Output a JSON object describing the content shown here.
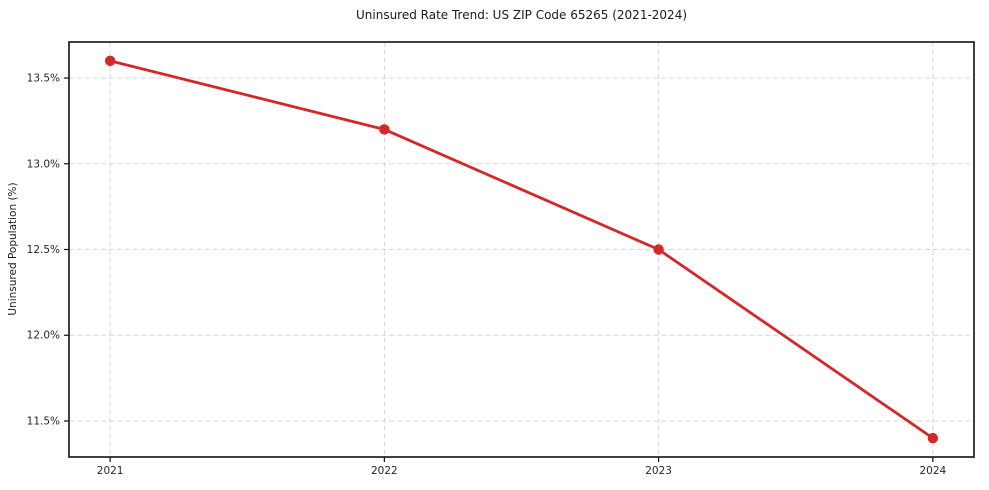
{
  "chart_data": {
    "type": "line",
    "title": "Uninsured Rate Trend: US ZIP Code 65265 (2021-2024)",
    "xlabel": "",
    "ylabel": "Uninsured Population (%)",
    "x": [
      2021,
      2022,
      2023,
      2024
    ],
    "categories": [
      "2021",
      "2022",
      "2023",
      "2024"
    ],
    "series": [
      {
        "name": "Uninsured Rate",
        "values": [
          13.6,
          13.2,
          12.5,
          11.4
        ]
      }
    ],
    "xtick_labels": [
      "2021",
      "2022",
      "2023",
      "2024"
    ],
    "ytick_values": [
      11.5,
      12.0,
      12.5,
      13.0,
      13.5
    ],
    "ytick_labels": [
      "11.5%",
      "12.0%",
      "12.5%",
      "13.0%",
      "13.5%"
    ],
    "xlim": [
      2020.85,
      2024.15
    ],
    "ylim": [
      11.29,
      13.71
    ],
    "grid": true,
    "grid_style": "dashed",
    "legend": "none",
    "marker": "circle",
    "colors": {
      "line": "#d62728",
      "marker": "#d62728",
      "grid": "#d7d7d7",
      "axis": "#111111",
      "text": "#262626",
      "background": "#ffffff"
    }
  }
}
